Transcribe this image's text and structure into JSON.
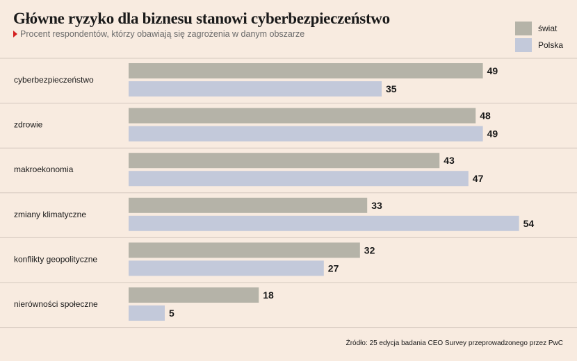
{
  "title": "Główne ryzyko dla biznesu stanowi cyberbezpieczeństwo",
  "subtitle": "Procent respondentów, którzy obawiają się zagrożenia w danym obszarze",
  "source": "Źródło: 25 edycja badania CEO Survey przeprowadzonego przez PwC",
  "colors": {
    "background": "#f8ebe0",
    "world": "#b5b3a8",
    "poland": "#c3c9da",
    "divider": "#d4c8be",
    "title_marker": "#d42020"
  },
  "chart_data": {
    "type": "bar",
    "orientation": "horizontal",
    "categories": [
      "cyberbezpieczeństwo",
      "zdrowie",
      "makroekonomia",
      "zmiany klimatyczne",
      "konflikty geopolityczne",
      "nierówności społeczne"
    ],
    "series": [
      {
        "name": "świat",
        "values": [
          49,
          48,
          43,
          33,
          32,
          18
        ]
      },
      {
        "name": "Polska",
        "values": [
          35,
          49,
          47,
          54,
          27,
          5
        ]
      }
    ],
    "xlim": [
      0,
      54
    ],
    "legend_position": "top-right",
    "grid": false,
    "data_labels": true
  }
}
